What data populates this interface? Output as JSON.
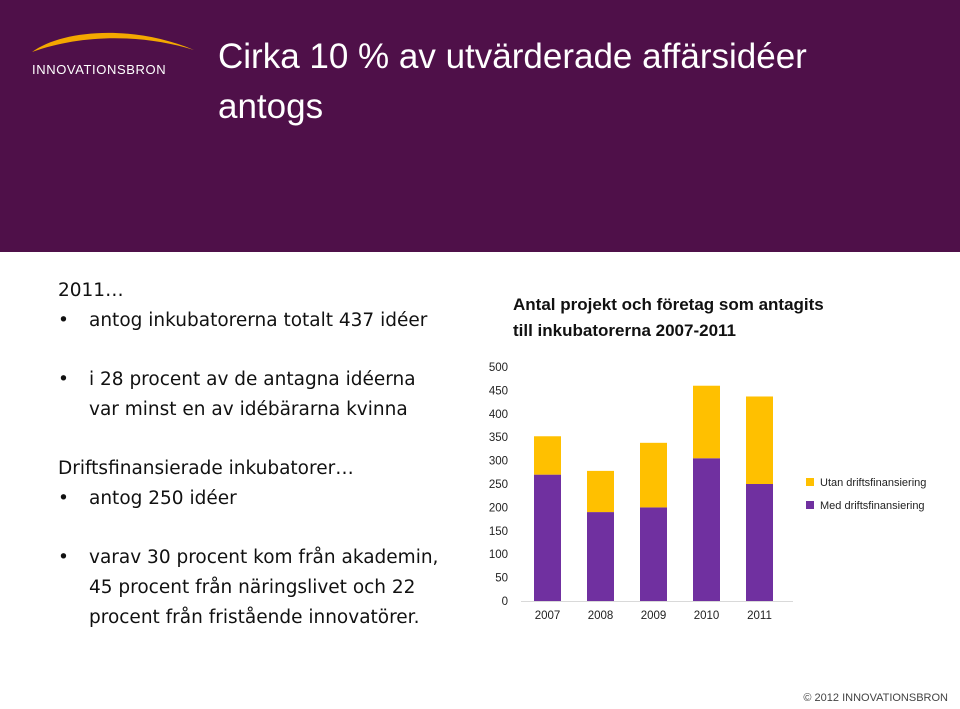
{
  "header": {
    "title_line1": "Cirka 10 % av utvärderade affärsidéer",
    "title_line2": "antogs",
    "logo_text": "INNOVATIONSBRON",
    "background_color": "#4f1049",
    "logo_swoosh_color": "#f3a800"
  },
  "left": {
    "heading_2011": "2011…",
    "bullet1": "antog inkubatorerna totalt 437 idéer",
    "bullet2_line1": "i 28 procent av de antagna idéerna",
    "bullet2_line2": "var minst en av idébärarna kvinna",
    "heading_drift": "Driftsfinansierade inkubatorer…",
    "bullet3": "antog 250 idéer",
    "bullet4_line1": "varav 30 procent kom från akademin,",
    "bullet4_line2": "45 procent från näringslivet och 22",
    "bullet4_line3": "procent från fristående innovatörer.",
    "bullet_char": "•"
  },
  "chart_data": {
    "type": "bar",
    "stacked": true,
    "title_line1": "Antal projekt och företag som antagits",
    "title_line2": "till inkubatorerna 2007-2011",
    "categories": [
      "2007",
      "2008",
      "2009",
      "2010",
      "2011"
    ],
    "series": [
      {
        "name": "Med driftsfinansiering",
        "color": "#7030a0",
        "values": [
          270,
          190,
          200,
          305,
          250
        ]
      },
      {
        "name": "Utan driftsfinansiering",
        "color": "#ffc000",
        "values": [
          82,
          88,
          138,
          155,
          187
        ]
      }
    ],
    "ylim": [
      0,
      500
    ],
    "yticks": [
      0,
      50,
      100,
      150,
      200,
      250,
      300,
      350,
      400,
      450,
      500
    ],
    "grid": false,
    "legend_position": "right"
  },
  "footer": {
    "copyright": "© 2012 INNOVATIONSBRON"
  }
}
